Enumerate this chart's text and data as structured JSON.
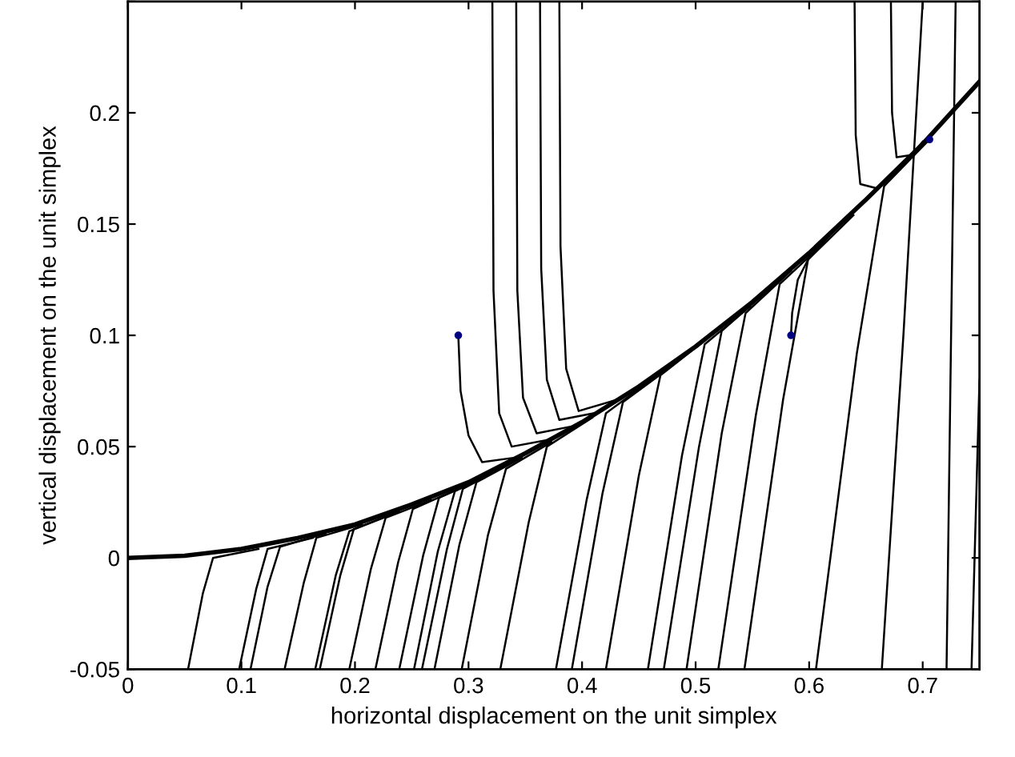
{
  "chart_data": {
    "type": "line",
    "xlabel": "horizontal displacement on the unit simplex",
    "ylabel": "vertical displacement on the unit simplex",
    "xlim": [
      0,
      0.75
    ],
    "xticks": [
      0,
      0.1,
      0.2,
      0.3,
      0.4,
      0.5,
      0.6,
      0.7
    ],
    "ylim": [
      -0.05,
      0.25
    ],
    "yticks": [
      -0.05,
      0,
      0.05,
      0.1,
      0.15,
      0.2,
      {
        "value": 0.25,
        "label": null
      }
    ],
    "grid": false,
    "marker": "none",
    "line_style": "solid",
    "series": [
      {
        "color": "#000000",
        "x": [
          0,
          0.05,
          0.1,
          0.15,
          0.2,
          0.25,
          0.3,
          0.35,
          0.4,
          0.45,
          0.5,
          0.55,
          0.6,
          0.65,
          0.7,
          0.75
        ],
        "values": [
          0,
          0.001,
          0.004,
          0.009,
          0.015,
          0.024,
          0.034,
          0.047,
          0.061,
          0.077,
          0.095,
          0.115,
          0.137,
          0.161,
          0.186,
          0.214
        ]
      },
      {
        "color": "#000000",
        "x": [
          0.053,
          0.066,
          0.075,
          0.115
        ],
        "values": [
          -0.05,
          -0.016,
          0.0,
          0.004
        ]
      },
      {
        "color": "#000000",
        "x": [
          0.098,
          0.113,
          0.123,
          0.163
        ],
        "values": [
          -0.05,
          -0.014,
          0.004,
          0.009
        ]
      },
      {
        "color": "#000000",
        "x": [
          0.108,
          0.123,
          0.134,
          0.174
        ],
        "values": [
          -0.05,
          -0.013,
          0.005,
          0.011
        ]
      },
      {
        "color": "#000000",
        "x": [
          0.138,
          0.155,
          0.166,
          0.206
        ],
        "values": [
          -0.05,
          -0.011,
          0.009,
          0.015
        ]
      },
      {
        "color": "#000000",
        "x": [
          0.165,
          0.183,
          0.195,
          0.235
        ],
        "values": [
          -0.05,
          -0.008,
          0.012,
          0.02
        ]
      },
      {
        "color": "#000000",
        "x": [
          0.169,
          0.187,
          0.199,
          0.239
        ],
        "values": [
          -0.05,
          -0.008,
          0.013,
          0.021
        ]
      },
      {
        "color": "#000000",
        "x": [
          0.195,
          0.214,
          0.227,
          0.267
        ],
        "values": [
          -0.05,
          -0.005,
          0.018,
          0.026
        ]
      },
      {
        "color": "#000000",
        "x": [
          0.218,
          0.238,
          0.251,
          0.291
        ],
        "values": [
          -0.05,
          -0.002,
          0.022,
          0.031
        ]
      },
      {
        "color": "#000000",
        "x": [
          0.239,
          0.26,
          0.274,
          0.314
        ],
        "values": [
          -0.05,
          0.001,
          0.027,
          0.036
        ]
      },
      {
        "color": "#000000",
        "x": [
          0.252,
          0.273,
          0.288,
          0.328
        ],
        "values": [
          -0.05,
          0.003,
          0.03,
          0.04
        ]
      },
      {
        "color": "#000000",
        "x": [
          0.259,
          0.281,
          0.295,
          0.335
        ],
        "values": [
          -0.05,
          0.004,
          0.031,
          0.042
        ]
      },
      {
        "color": "#000000",
        "x": [
          0.27,
          0.292,
          0.307,
          0.347
        ],
        "values": [
          -0.05,
          0.006,
          0.034,
          0.045
        ]
      },
      {
        "color": "#000000",
        "x": [
          0.294,
          0.317,
          0.333,
          0.373
        ],
        "values": [
          -0.05,
          0.01,
          0.04,
          0.052
        ]
      },
      {
        "color": "#000000",
        "x": [
          0.328,
          0.353,
          0.369,
          0.409
        ],
        "values": [
          -0.05,
          0.016,
          0.05,
          0.063
        ]
      },
      {
        "color": "#000000",
        "x": [
          0.377,
          0.404,
          0.421,
          0.461
        ],
        "values": [
          -0.05,
          0.026,
          0.065,
          0.08
        ]
      },
      {
        "color": "#000000",
        "x": [
          0.391,
          0.418,
          0.436,
          0.476
        ],
        "values": [
          -0.05,
          0.029,
          0.07,
          0.085
        ]
      },
      {
        "color": "#000000",
        "x": [
          0.421,
          0.45,
          0.469,
          0.509
        ],
        "values": [
          -0.05,
          0.037,
          0.082,
          0.098
        ]
      },
      {
        "color": "#000000",
        "x": [
          0.458,
          0.488,
          0.508,
          0.548
        ],
        "values": [
          -0.05,
          0.046,
          0.096,
          0.113
        ]
      },
      {
        "color": "#000000",
        "x": [
          0.472,
          0.503,
          0.523,
          0.563
        ],
        "values": [
          -0.05,
          0.05,
          0.102,
          0.12
        ]
      },
      {
        "color": "#000000",
        "x": [
          0.492,
          0.523,
          0.544,
          0.584
        ],
        "values": [
          -0.05,
          0.056,
          0.11,
          0.129
        ]
      },
      {
        "color": "#000000",
        "x": [
          0.52,
          0.553,
          0.574,
          0.614
        ],
        "values": [
          -0.05,
          0.064,
          0.123,
          0.142
        ]
      },
      {
        "color": "#000000",
        "x": [
          0.543,
          0.577,
          0.599,
          0.639
        ],
        "values": [
          -0.05,
          0.071,
          0.134,
          0.154
        ]
      },
      {
        "color": "#000000",
        "x": [
          0.606,
          0.642,
          0.666,
          0.706
        ],
        "values": [
          -0.05,
          0.092,
          0.167,
          0.188
        ]
      },
      {
        "color": "#000000",
        "x": [
          0.664,
          0.683,
          0.7
        ],
        "values": [
          -0.05,
          0.1,
          0.25
        ]
      },
      {
        "color": "#000000",
        "x": [
          0.721,
          0.725,
          0.729
        ],
        "values": [
          -0.05,
          0.1,
          0.25
        ]
      },
      {
        "color": "#000000",
        "x": [
          0.743,
          0.75
        ],
        "values": [
          -0.05,
          0.08
        ]
      },
      {
        "color": "#000000",
        "x": [
          0.321,
          0.322,
          0.327,
          0.338,
          0.37
        ],
        "values": [
          0.25,
          0.12,
          0.065,
          0.05,
          0.053
        ]
      },
      {
        "color": "#000000",
        "x": [
          0.342,
          0.343,
          0.348,
          0.36,
          0.39
        ],
        "values": [
          0.25,
          0.12,
          0.072,
          0.056,
          0.059
        ]
      },
      {
        "color": "#000000",
        "x": [
          0.363,
          0.364,
          0.369,
          0.38,
          0.41
        ],
        "values": [
          0.25,
          0.13,
          0.08,
          0.062,
          0.065
        ]
      },
      {
        "color": "#000000",
        "x": [
          0.38,
          0.381,
          0.386,
          0.397,
          0.43
        ],
        "values": [
          0.25,
          0.14,
          0.085,
          0.066,
          0.071
        ]
      },
      {
        "color": "#000000",
        "x": [
          0.291,
          0.293,
          0.3,
          0.312,
          0.34
        ],
        "values": [
          0.1,
          0.075,
          0.055,
          0.043,
          0.045
        ]
      },
      {
        "color": "#000000",
        "x": [
          0.64,
          0.641,
          0.645,
          0.66,
          0.68
        ],
        "values": [
          0.25,
          0.19,
          0.168,
          0.166,
          0.176
        ]
      },
      {
        "color": "#000000",
        "x": [
          0.672,
          0.673,
          0.677,
          0.69,
          0.7
        ],
        "values": [
          0.25,
          0.2,
          0.18,
          0.181,
          0.187
        ]
      },
      {
        "color": "#000000",
        "x": [
          0.584,
          0.585,
          0.59,
          0.6,
          0.62
        ],
        "values": [
          0.1,
          0.11,
          0.125,
          0.135,
          0.146
        ]
      },
      {
        "type": "scatter",
        "marker": "circle",
        "color": "#000080",
        "x": [
          0.291,
          0.584,
          0.706
        ],
        "values": [
          0.1,
          0.1,
          0.188
        ]
      }
    ]
  }
}
